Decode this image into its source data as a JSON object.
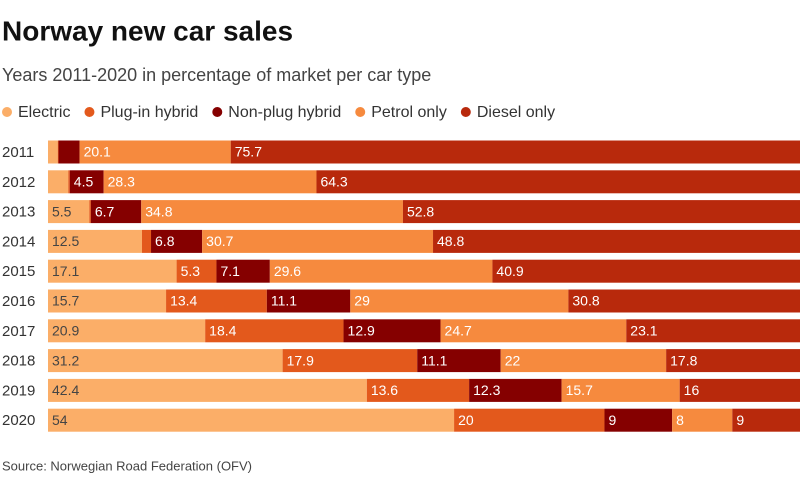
{
  "chart_data": {
    "type": "stacked-bar-horizontal",
    "title": "Norway new car sales",
    "subtitle": "Years 2011-2020 in percentage of market per car type",
    "source": "Source: Norwegian Road Federation (OFV)",
    "categories": [
      "2011",
      "2012",
      "2013",
      "2014",
      "2015",
      "2016",
      "2017",
      "2018",
      "2019",
      "2020"
    ],
    "xlim": [
      0,
      100
    ],
    "series": [
      {
        "name": "Electric",
        "color": "#fbae68",
        "values": [
          1.3,
          2.7,
          5.5,
          12.5,
          17.1,
          15.7,
          20.9,
          31.2,
          42.4,
          54
        ]
      },
      {
        "name": "Plug-in hybrid",
        "color": "#e3591c",
        "values": [
          0.1,
          0.2,
          0.2,
          1.2,
          5.3,
          13.4,
          18.4,
          17.9,
          13.6,
          20
        ]
      },
      {
        "name": "Non-plug hybrid",
        "color": "#850000",
        "values": [
          2.8,
          4.5,
          6.7,
          6.8,
          7.1,
          11.1,
          12.9,
          11.1,
          12.3,
          9
        ]
      },
      {
        "name": "Petrol only",
        "color": "#f68a3e",
        "values": [
          20.1,
          28.3,
          34.8,
          30.7,
          29.6,
          29,
          24.7,
          22,
          15.7,
          8
        ]
      },
      {
        "name": "Diesel only",
        "color": "#b8290c",
        "values": [
          75.7,
          64.3,
          52.8,
          48.8,
          40.9,
          30.8,
          23.1,
          17.8,
          16,
          9
        ]
      }
    ]
  }
}
